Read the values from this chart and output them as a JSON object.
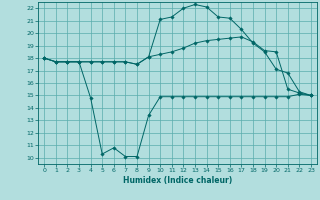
{
  "xlabel": "Humidex (Indice chaleur)",
  "xlim": [
    -0.5,
    23.5
  ],
  "ylim": [
    9.5,
    22.5
  ],
  "x_ticks": [
    0,
    1,
    2,
    3,
    4,
    5,
    6,
    7,
    8,
    9,
    10,
    11,
    12,
    13,
    14,
    15,
    16,
    17,
    18,
    19,
    20,
    21,
    22,
    23
  ],
  "y_ticks": [
    10,
    11,
    12,
    13,
    14,
    15,
    16,
    17,
    18,
    19,
    20,
    21,
    22
  ],
  "bg_color": "#b2dede",
  "grid_color": "#5aadad",
  "line_color": "#006666",
  "line1_x": [
    0,
    1,
    2,
    3,
    4,
    5,
    6,
    7,
    8,
    9,
    10,
    11,
    12,
    13,
    14,
    15,
    16,
    17,
    18,
    19,
    20,
    21,
    22,
    23
  ],
  "line1_y": [
    18.0,
    17.7,
    17.7,
    17.7,
    14.8,
    10.3,
    10.8,
    10.1,
    10.1,
    13.4,
    14.9,
    14.9,
    14.9,
    14.9,
    14.9,
    14.9,
    14.9,
    14.9,
    14.9,
    14.9,
    14.9,
    14.9,
    15.1,
    15.0
  ],
  "line2_x": [
    0,
    1,
    2,
    3,
    4,
    5,
    6,
    7,
    8,
    9,
    10,
    11,
    12,
    13,
    14,
    15,
    16,
    17,
    18,
    19,
    20,
    21,
    22,
    23
  ],
  "line2_y": [
    18.0,
    17.7,
    17.7,
    17.7,
    17.7,
    17.7,
    17.7,
    17.7,
    17.5,
    18.1,
    18.3,
    18.5,
    18.8,
    19.2,
    19.4,
    19.5,
    19.6,
    19.7,
    19.3,
    18.6,
    18.5,
    15.5,
    15.2,
    15.0
  ],
  "line3_x": [
    0,
    1,
    2,
    3,
    4,
    5,
    6,
    7,
    8,
    9,
    10,
    11,
    12,
    13,
    14,
    15,
    16,
    17,
    18,
    19,
    20,
    21,
    22,
    23
  ],
  "line3_y": [
    18.0,
    17.7,
    17.7,
    17.7,
    17.7,
    17.7,
    17.7,
    17.7,
    17.5,
    18.1,
    21.1,
    21.3,
    22.0,
    22.3,
    22.1,
    21.3,
    21.2,
    20.3,
    19.2,
    18.5,
    17.1,
    16.8,
    15.3,
    15.0
  ]
}
